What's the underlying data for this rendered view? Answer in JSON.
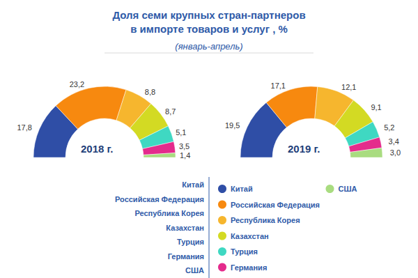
{
  "title": "Доля семи крупных стран-партнеров\nв импорте товаров и услуг , %",
  "subtitle": "(январь-апрель)",
  "chart_data": [
    {
      "type": "pie",
      "title": "2018 г.",
      "categories": [
        "Китай",
        "Российская Федерация",
        "Республика Корея",
        "Казахстан",
        "Турция",
        "Германия",
        "США"
      ],
      "values": [
        17.8,
        23.2,
        8.8,
        8.7,
        5.1,
        3.5,
        1.4
      ],
      "value_labels": [
        "17,8",
        "23,2",
        "8,8",
        "8,7",
        "5,1",
        "3,5",
        "1,4"
      ],
      "colors": [
        "#2f4ea6",
        "#f7890f",
        "#f6b62e",
        "#d3da23",
        "#3fd8c2",
        "#e42b8c",
        "#a9dc80"
      ],
      "data_labels": true,
      "legend": "bottom"
    },
    {
      "type": "pie",
      "title": "2019 г.",
      "categories": [
        "Китай",
        "Российская Федерация",
        "Республика Корея",
        "Казахстан",
        "Турция",
        "Германия",
        "США"
      ],
      "values": [
        19.5,
        17.1,
        12.1,
        9.1,
        5.2,
        3.4,
        3.0
      ],
      "value_labels": [
        "19,5",
        "17,1",
        "12,1",
        "9,1",
        "5,2",
        "3,4",
        "3,0"
      ],
      "colors": [
        "#2f4ea6",
        "#f7890f",
        "#f6b62e",
        "#d3da23",
        "#3fd8c2",
        "#e42b8c",
        "#a9dc80"
      ],
      "data_labels": true,
      "legend": "bottom"
    }
  ]
}
